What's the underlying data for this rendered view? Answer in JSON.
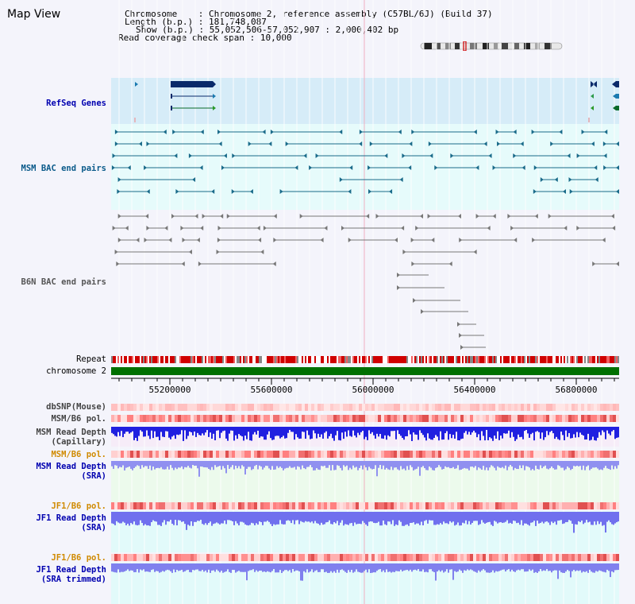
{
  "page": {
    "title": "Map View"
  },
  "header": {
    "chromosome_label": "Chromosome",
    "chromosome_value": "Chromosome 2, reference assembly (C57BL/6J) (Build 37)",
    "length_label": "Length (b.p.)",
    "length_value": "181,748,087",
    "show_label": "Show (b.p.)",
    "show_value": "55,052,506-57,052,907 : 2,000,402 bp",
    "coverage_label": "Read coverage check span",
    "coverage_value": "10,000"
  },
  "tracks": {
    "refseq": "RefSeq Genes",
    "msm_bac": "MSM BAC end pairs",
    "b6n_bac": "B6N BAC end pairs",
    "repeat": "Repeat",
    "chromosome": "chromosome 2",
    "dbsnp": "dbSNP(Mouse)",
    "msm_pol1": "MSM/B6 pol.",
    "msm_depth_cap_1": "MSM Read Depth",
    "msm_depth_cap_2": "(Capillary)",
    "msm_pol2": "MSM/B6 pol.",
    "msm_depth_sra_1": "MSM Read Depth",
    "msm_depth_sra_2": "(SRA)",
    "jf1_pol1": "JF1/B6 pol.",
    "jf1_depth_1": "JF1 Read Depth",
    "jf1_depth_2": "(SRA)",
    "jf1_pol2": "JF1/B6 pol.",
    "jf1_trim_1": "JF1 Read Depth",
    "jf1_trim_2": "(SRA trimmed)"
  },
  "axis": {
    "ticks": [
      "55200000",
      "55600000",
      "56000000",
      "56400000",
      "56800000"
    ]
  },
  "colors": {
    "refseq_bg": "#d6ecf8",
    "msm_bg": "#e6fbfb",
    "gene": "#0a2a6a",
    "msm_pair": "#1a6b8a",
    "b6n_pair": "#777777",
    "chromosome_bar": "#007000",
    "depth": "#3a3ad8",
    "depth_light": "#8888f0"
  }
}
